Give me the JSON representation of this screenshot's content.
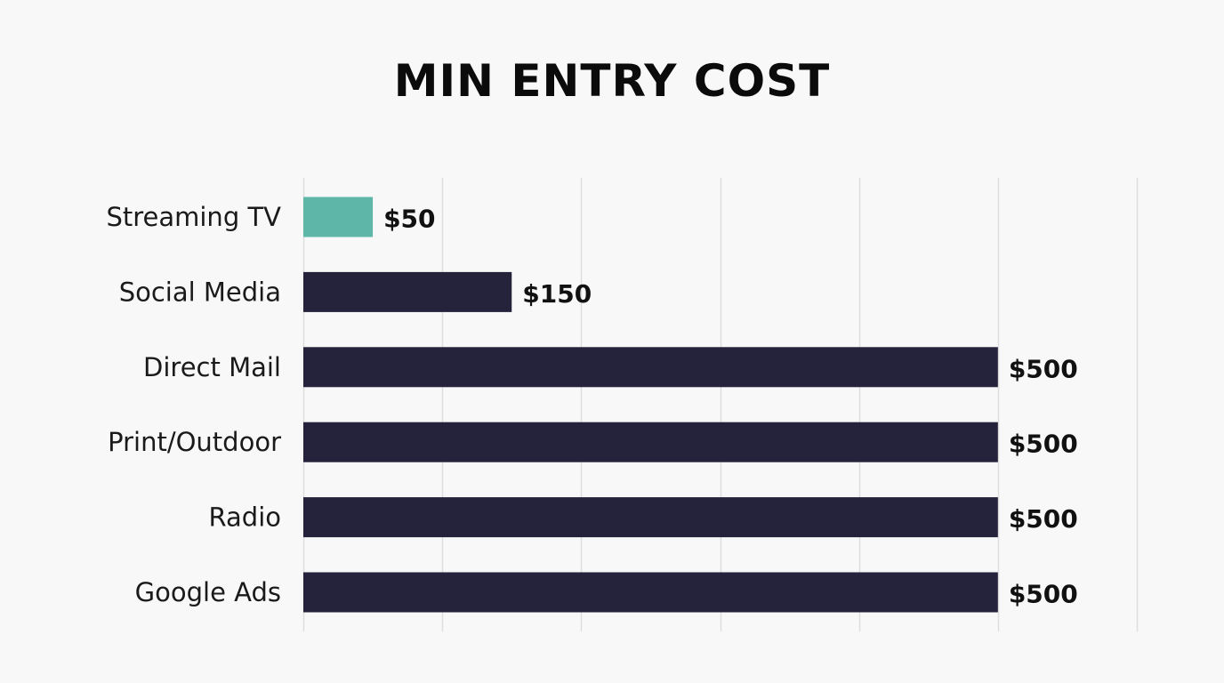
{
  "chart_data": {
    "type": "bar",
    "orientation": "horizontal",
    "title": "MIN ENTRY COST",
    "categories": [
      "Streaming TV",
      "Social Media",
      "Direct Mail",
      "Print/Outdoor",
      "Radio",
      "Google Ads"
    ],
    "values": [
      50,
      150,
      500,
      500,
      500,
      500
    ],
    "value_labels": [
      "$50",
      "$150",
      "$500",
      "$500",
      "$500",
      "$500"
    ],
    "xlim": [
      0,
      600
    ],
    "grid": "vertical",
    "highlight_category": "Streaming TV",
    "colors": {
      "highlight": "#5db6a8",
      "bar": "#24233b",
      "grid": "#dedede",
      "background": "#f8f8f8"
    }
  }
}
